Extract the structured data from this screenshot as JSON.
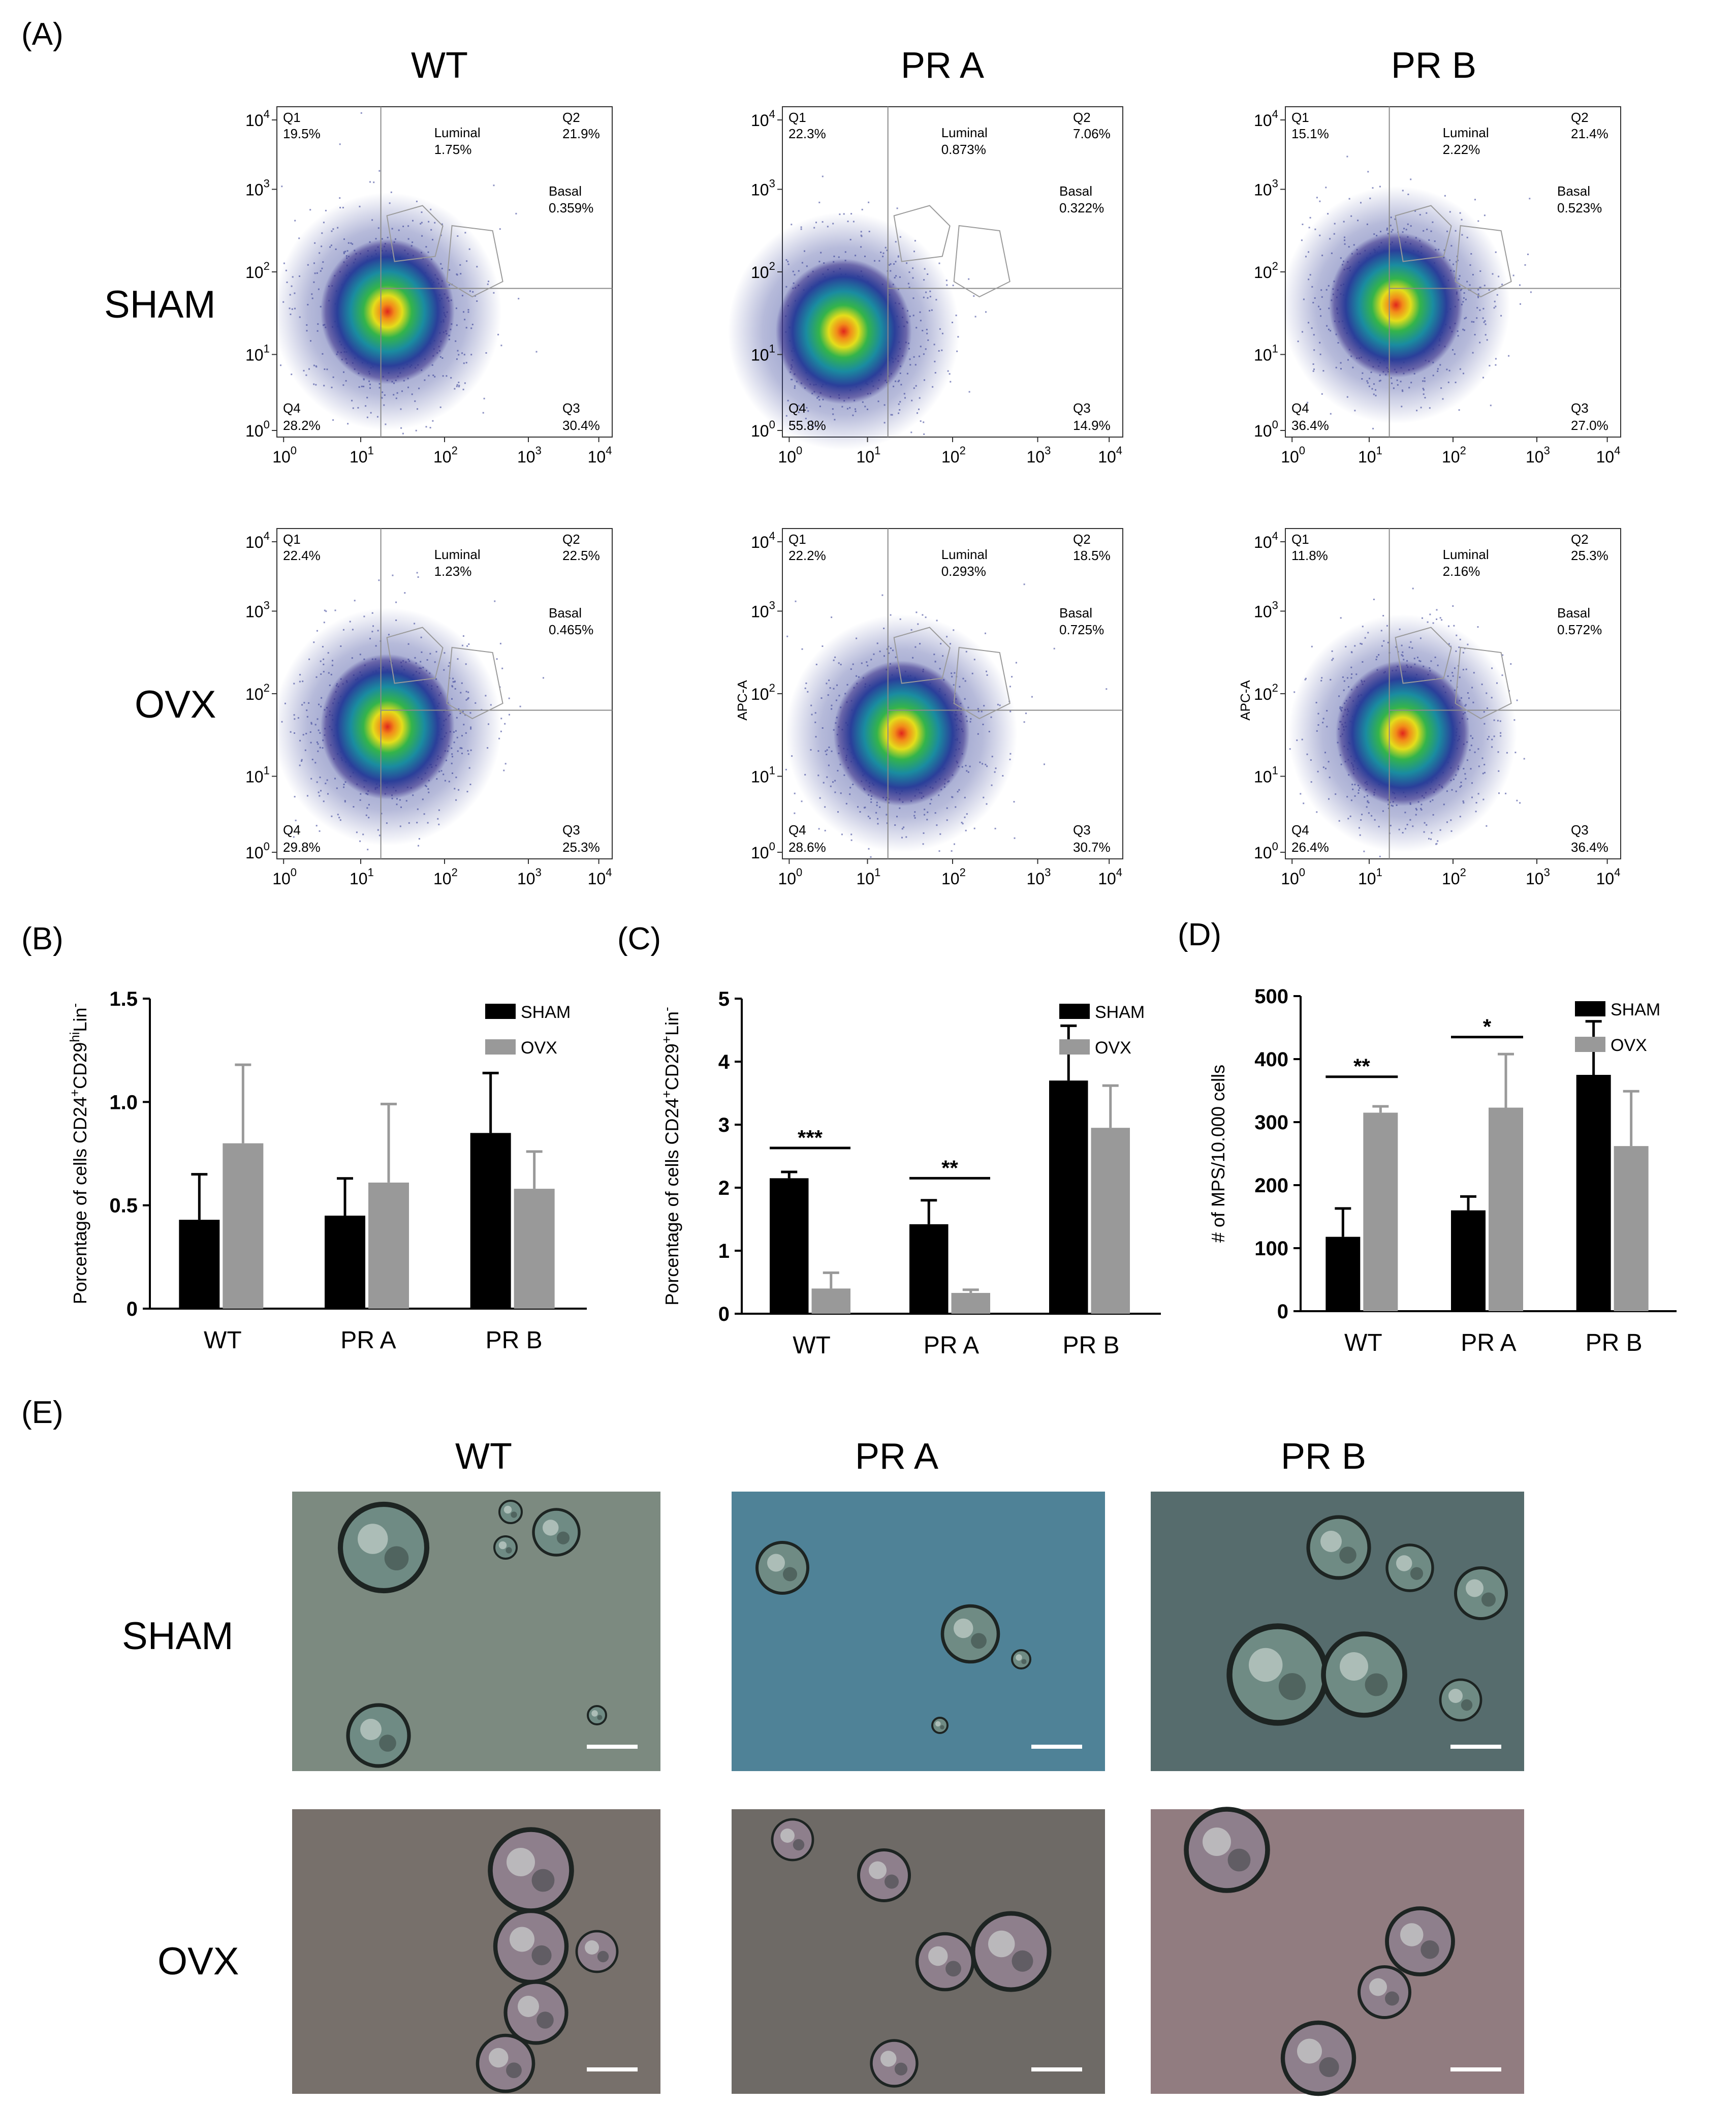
{
  "panel_labels": {
    "A": "(A)",
    "B": "(B)",
    "C": "(C)",
    "D": "(D)",
    "E": "(E)"
  },
  "column_headers": [
    "WT",
    "PR A",
    "PR B"
  ],
  "row_headers": [
    "SHAM",
    "OVX"
  ],
  "flow_axis_tick_labels": [
    "10^0",
    "10^1",
    "10^2",
    "10^3",
    "10^4"
  ],
  "flow_ylabel": "APC-A",
  "flow_plots": [
    {
      "row": "SHAM",
      "col": "WT",
      "q1": {
        "label": "Q1",
        "value": "19.5%"
      },
      "q2": {
        "label": "Q2",
        "value": "21.9%"
      },
      "q3": {
        "label": "Q3",
        "value": "30.4%"
      },
      "q4": {
        "label": "Q4",
        "value": "28.2%"
      },
      "luminal": {
        "label": "Luminal",
        "value": "1.75%"
      },
      "basal": {
        "label": "Basal",
        "value": "0.359%"
      },
      "ylabel": ""
    },
    {
      "row": "SHAM",
      "col": "PR A",
      "q1": {
        "label": "Q1",
        "value": "22.3%"
      },
      "q2": {
        "label": "Q2",
        "value": "7.06%"
      },
      "q3": {
        "label": "Q3",
        "value": "14.9%"
      },
      "q4": {
        "label": "Q4",
        "value": "55.8%"
      },
      "luminal": {
        "label": "Luminal",
        "value": "0.873%"
      },
      "basal": {
        "label": "Basal",
        "value": "0.322%"
      },
      "ylabel": ""
    },
    {
      "row": "SHAM",
      "col": "PR B",
      "q1": {
        "label": "Q1",
        "value": "15.1%"
      },
      "q2": {
        "label": "Q2",
        "value": "21.4%"
      },
      "q3": {
        "label": "Q3",
        "value": "27.0%"
      },
      "q4": {
        "label": "Q4",
        "value": "36.4%"
      },
      "luminal": {
        "label": "Luminal",
        "value": "2.22%"
      },
      "basal": {
        "label": "Basal",
        "value": "0.523%"
      },
      "ylabel": ""
    },
    {
      "row": "OVX",
      "col": "WT",
      "q1": {
        "label": "Q1",
        "value": "22.4%"
      },
      "q2": {
        "label": "Q2",
        "value": "22.5%"
      },
      "q3": {
        "label": "Q3",
        "value": "25.3%"
      },
      "q4": {
        "label": "Q4",
        "value": "29.8%"
      },
      "luminal": {
        "label": "Luminal",
        "value": "1.23%"
      },
      "basal": {
        "label": "Basal",
        "value": "0.465%"
      },
      "ylabel": ""
    },
    {
      "row": "OVX",
      "col": "PR A",
      "q1": {
        "label": "Q1",
        "value": "22.2%"
      },
      "q2": {
        "label": "Q2",
        "value": "18.5%"
      },
      "q3": {
        "label": "Q3",
        "value": "30.7%"
      },
      "q4": {
        "label": "Q4",
        "value": "28.6%"
      },
      "luminal": {
        "label": "Luminal",
        "value": "0.293%"
      },
      "basal": {
        "label": "Basal",
        "value": "0.725%"
      },
      "ylabel": "APC-A"
    },
    {
      "row": "OVX",
      "col": "PR B",
      "q1": {
        "label": "Q1",
        "value": "11.8%"
      },
      "q2": {
        "label": "Q2",
        "value": "25.3%"
      },
      "q3": {
        "label": "Q3",
        "value": "36.4%"
      },
      "q4": {
        "label": "Q4",
        "value": "26.4%"
      },
      "luminal": {
        "label": "Luminal",
        "value": "2.16%"
      },
      "basal": {
        "label": "Basal",
        "value": "0.572%"
      },
      "ylabel": "APC-A"
    }
  ],
  "chart_data": [
    {
      "panel": "(B)",
      "type": "bar",
      "categories": [
        "WT",
        "PR A",
        "PR B"
      ],
      "series": [
        {
          "name": "SHAM",
          "color": "#000000",
          "values": [
            0.43,
            0.45,
            0.85
          ],
          "errors": [
            0.22,
            0.18,
            0.29
          ]
        },
        {
          "name": "OVX",
          "color": "#999999",
          "values": [
            0.8,
            0.61,
            0.58
          ],
          "errors": [
            0.38,
            0.38,
            0.18
          ]
        }
      ],
      "ylabel": "Porcentage of cells CD24+CD29hiLin-",
      "ylabel_parts": {
        "pre": "Porcentage of cells CD24",
        "sup1": "+",
        "mid": "CD29",
        "sup2": "hi",
        "post": "Lin",
        "sup3": "-"
      },
      "yticks": [
        "0",
        "0.5",
        "1.0",
        "1.5"
      ],
      "ylim": [
        0,
        1.5
      ],
      "legend": "top-right",
      "significance": []
    },
    {
      "panel": "(C)",
      "type": "bar",
      "categories": [
        "WT",
        "PR A",
        "PR B"
      ],
      "series": [
        {
          "name": "SHAM",
          "color": "#000000",
          "values": [
            2.15,
            1.42,
            3.7
          ],
          "errors": [
            0.1,
            0.38,
            0.87
          ]
        },
        {
          "name": "OVX",
          "color": "#999999",
          "values": [
            0.4,
            0.33,
            2.95
          ],
          "errors": [
            0.25,
            0.05,
            0.67
          ]
        }
      ],
      "ylabel": "Porcentage of cells CD24+CD29+Lin-",
      "ylabel_parts": {
        "pre": "Porcentage of cells CD24",
        "sup1": "+",
        "mid": "CD29",
        "sup2": "+",
        "post": "Lin",
        "sup3": "-"
      },
      "yticks": [
        "0",
        "1",
        "2",
        "3",
        "4",
        "5"
      ],
      "ylim": [
        0,
        5
      ],
      "legend": "top-right",
      "significance": [
        {
          "category": "WT",
          "label": "***",
          "value": 2.63
        },
        {
          "category": "PR A",
          "label": "**",
          "value": 2.15
        }
      ]
    },
    {
      "panel": "(D)",
      "type": "bar",
      "categories": [
        "WT",
        "PR A",
        "PR B"
      ],
      "series": [
        {
          "name": "SHAM",
          "color": "#000000",
          "values": [
            118,
            160,
            375
          ],
          "errors": [
            45,
            22,
            85
          ]
        },
        {
          "name": "OVX",
          "color": "#999999",
          "values": [
            315,
            323,
            262
          ],
          "errors": [
            10,
            85,
            87
          ]
        }
      ],
      "ylabel": "# of MPS/10.000 cells",
      "yticks": [
        "0",
        "100",
        "200",
        "300",
        "400",
        "500"
      ],
      "ylim": [
        0,
        500
      ],
      "legend": "top-right",
      "significance": [
        {
          "category": "WT",
          "label": "**",
          "value": 372
        },
        {
          "category": "PR A",
          "label": "*",
          "value": 435
        }
      ]
    }
  ],
  "micrographs": {
    "rows": [
      "SHAM",
      "OVX"
    ],
    "cols": [
      "WT",
      "PR A",
      "PR B"
    ],
    "backgrounds": [
      [
        "#7c8a80",
        "#4f8297",
        "#566c6d"
      ],
      [
        "#77706b",
        "#6e6a66",
        "#917c80"
      ]
    ]
  }
}
